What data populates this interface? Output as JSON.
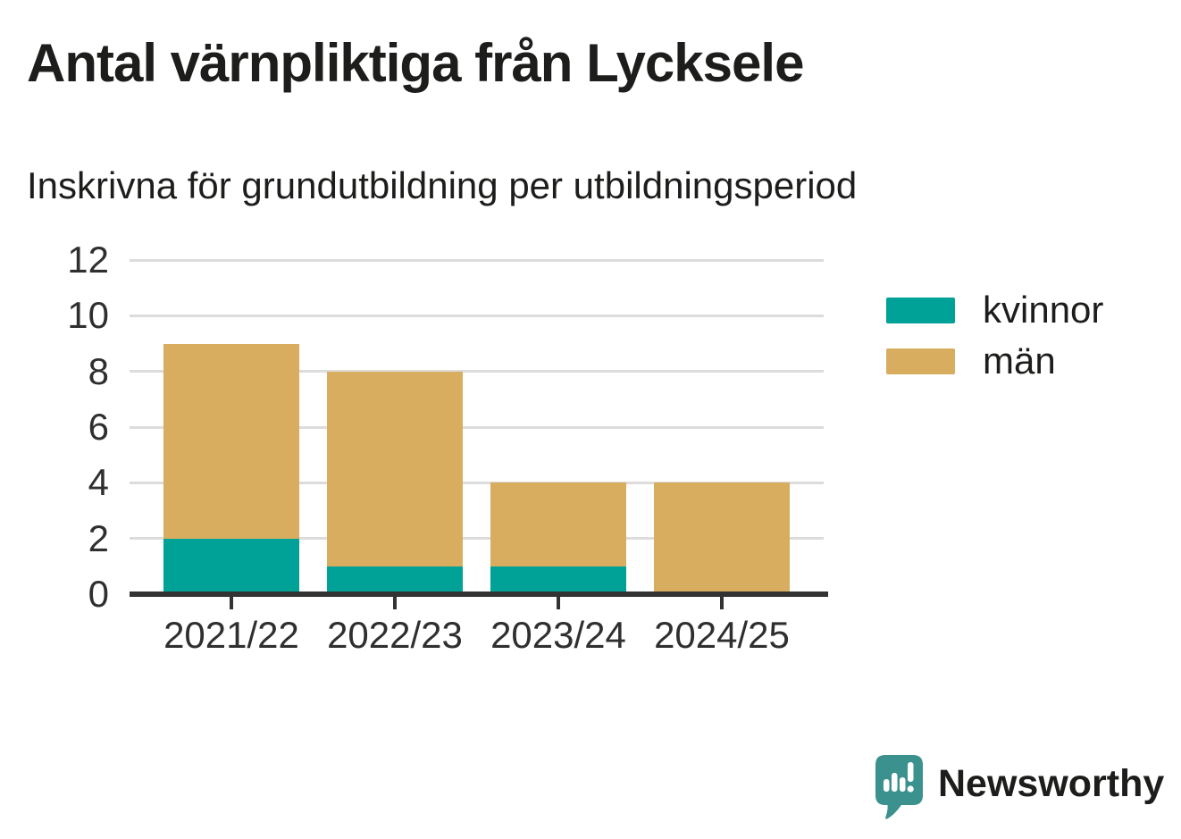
{
  "title": "Antal värnpliktiga från Lycksele",
  "subtitle": "Inskrivna för grundutbildning per utbildningsperiod",
  "chart_data": {
    "type": "bar",
    "stacked": true,
    "title": "Antal värnpliktiga från Lycksele",
    "subtitle": "Inskrivna för grundutbildning per utbildningsperiod",
    "categories": [
      "2021/22",
      "2022/23",
      "2023/24",
      "2024/25"
    ],
    "series": [
      {
        "name": "kvinnor",
        "color": "#00a196",
        "values": [
          2,
          1,
          1,
          0
        ]
      },
      {
        "name": "män",
        "color": "#d9ad60",
        "values": [
          7,
          7,
          3,
          4
        ]
      }
    ],
    "totals": [
      9,
      8,
      4,
      4
    ],
    "xlabel": "",
    "ylabel": "",
    "ylim": [
      0,
      12
    ],
    "yticks": [
      0,
      2,
      4,
      6,
      8,
      10,
      12
    ],
    "grid": true,
    "gridline_color": "#dcdcdc",
    "axis_color": "#333333",
    "legend_position": "right"
  },
  "branding": {
    "logo_text": "Newsworthy",
    "logo_color": "#3b918e",
    "logo_icon": "speech-bubble-bar-chart-icon"
  }
}
